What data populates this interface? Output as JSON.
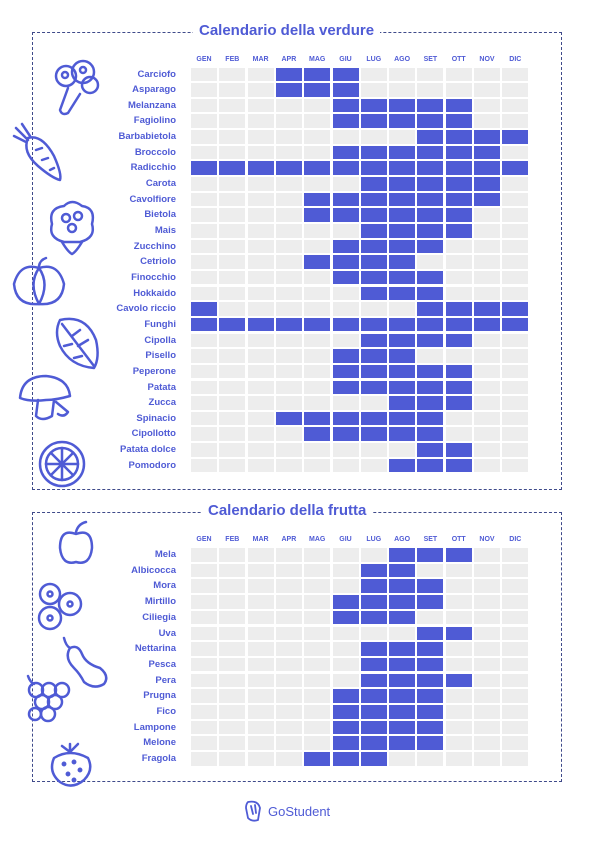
{
  "months": [
    "GEN",
    "FEB",
    "MAR",
    "APR",
    "MAG",
    "GIU",
    "LUG",
    "AGO",
    "SET",
    "OTT",
    "NOV",
    "DIC"
  ],
  "vegetables": {
    "title": "Calendario della verdure",
    "items": [
      {
        "name": "Carciofo",
        "months": [
          4,
          5,
          6
        ]
      },
      {
        "name": "Asparago",
        "months": [
          4,
          5,
          6
        ]
      },
      {
        "name": "Melanzana",
        "months": [
          6,
          7,
          8,
          9,
          10
        ]
      },
      {
        "name": "Fagiolino",
        "months": [
          6,
          7,
          8,
          9,
          10
        ]
      },
      {
        "name": "Barbabietola",
        "months": [
          9,
          10,
          11,
          12
        ]
      },
      {
        "name": "Broccolo",
        "months": [
          6,
          7,
          8,
          9,
          10,
          11
        ]
      },
      {
        "name": "Radicchio",
        "months": [
          1,
          2,
          3,
          4,
          5,
          6,
          7,
          8,
          9,
          10,
          11,
          12
        ]
      },
      {
        "name": "Carota",
        "months": [
          7,
          8,
          9,
          10,
          11
        ]
      },
      {
        "name": "Cavolfiore",
        "months": [
          5,
          6,
          7,
          8,
          9,
          10,
          11
        ]
      },
      {
        "name": "Bietola",
        "months": [
          5,
          6,
          7,
          8,
          9,
          10
        ]
      },
      {
        "name": "Mais",
        "months": [
          7,
          8,
          9,
          10
        ]
      },
      {
        "name": "Zucchino",
        "months": [
          6,
          7,
          8,
          9
        ]
      },
      {
        "name": "Cetriolo",
        "months": [
          5,
          6,
          7,
          8
        ]
      },
      {
        "name": "Finocchio",
        "months": [
          6,
          7,
          8,
          9
        ]
      },
      {
        "name": "Hokkaido",
        "months": [
          7,
          8,
          9
        ]
      },
      {
        "name": "Cavolo riccio",
        "months": [
          1,
          9,
          10,
          11,
          12
        ]
      },
      {
        "name": "Funghi",
        "months": [
          1,
          2,
          3,
          4,
          5,
          6,
          7,
          8,
          9,
          10,
          11,
          12
        ]
      },
      {
        "name": "Cipolla",
        "months": [
          7,
          8,
          9,
          10
        ]
      },
      {
        "name": "Pisello",
        "months": [
          6,
          7,
          8
        ]
      },
      {
        "name": "Peperone",
        "months": [
          6,
          7,
          8,
          9,
          10
        ]
      },
      {
        "name": "Patata",
        "months": [
          6,
          7,
          8,
          9,
          10
        ]
      },
      {
        "name": "Zucca",
        "months": [
          8,
          9,
          10
        ]
      },
      {
        "name": "Spinacio",
        "months": [
          4,
          5,
          6,
          7,
          8,
          9
        ]
      },
      {
        "name": "Cipollotto",
        "months": [
          5,
          6,
          7,
          8,
          9
        ]
      },
      {
        "name": "Patata dolce",
        "months": [
          9,
          10
        ]
      },
      {
        "name": "Pomodoro",
        "months": [
          8,
          9,
          10
        ]
      }
    ]
  },
  "fruits": {
    "title": "Calendario della frutta",
    "items": [
      {
        "name": "Mela",
        "months": [
          8,
          9,
          10
        ]
      },
      {
        "name": "Albicocca",
        "months": [
          7,
          8
        ]
      },
      {
        "name": "Mora",
        "months": [
          7,
          8,
          9
        ]
      },
      {
        "name": "Mirtillo",
        "months": [
          6,
          7,
          8,
          9
        ]
      },
      {
        "name": "Ciliegia",
        "months": [
          6,
          7,
          8
        ]
      },
      {
        "name": "Uva",
        "months": [
          9,
          10
        ]
      },
      {
        "name": "Nettarina",
        "months": [
          7,
          8,
          9
        ]
      },
      {
        "name": "Pesca",
        "months": [
          7,
          8,
          9
        ]
      },
      {
        "name": "Pera",
        "months": [
          7,
          8,
          9,
          10
        ]
      },
      {
        "name": "Prugna",
        "months": [
          6,
          7,
          8,
          9
        ]
      },
      {
        "name": "Fico",
        "months": [
          6,
          7,
          8,
          9
        ]
      },
      {
        "name": "Lampone",
        "months": [
          6,
          7,
          8,
          9
        ]
      },
      {
        "name": "Melone",
        "months": [
          6,
          7,
          8,
          9
        ]
      },
      {
        "name": "Fragola",
        "months": [
          5,
          6,
          7
        ]
      }
    ]
  },
  "icons": {
    "vegetables": [
      "broccoli-icon",
      "carrot-icon",
      "cauliflower-icon",
      "pumpkin-icon",
      "lettuce-leaf-icon",
      "mushroom-icon",
      "orange-slice-icon"
    ],
    "fruits": [
      "apple-icon",
      "blueberries-icon",
      "pear-icon",
      "grapes-icon",
      "strawberry-icon"
    ]
  },
  "brand": {
    "name": "GoStudent",
    "accent": "#4f5bd5",
    "cell_off": "#ededed"
  }
}
